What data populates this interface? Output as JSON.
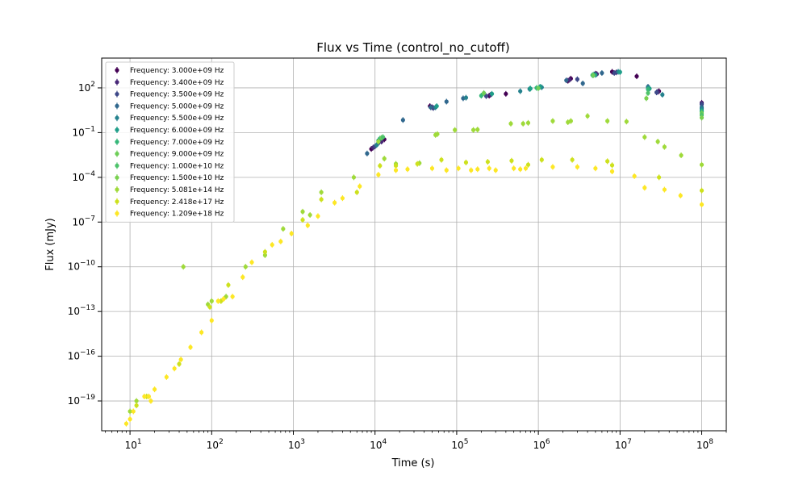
{
  "chart_data": {
    "type": "scatter",
    "title": "Flux vs Time (control_no_cutoff)",
    "xlabel": "Time (s)",
    "ylabel": "Flux (mJy)",
    "xscale": "log",
    "yscale": "log",
    "xlim": [
      4.5,
      200000000
    ],
    "ylim": [
      1e-21,
      10000.0
    ],
    "x_major_ticks": [
      10,
      100,
      1000,
      10000,
      100000,
      1000000,
      10000000,
      100000000
    ],
    "x_tick_labels": [
      {
        "base": "10",
        "exp": "1"
      },
      {
        "base": "10",
        "exp": "2"
      },
      {
        "base": "10",
        "exp": "3"
      },
      {
        "base": "10",
        "exp": "4"
      },
      {
        "base": "10",
        "exp": "5"
      },
      {
        "base": "10",
        "exp": "6"
      },
      {
        "base": "10",
        "exp": "7"
      },
      {
        "base": "10",
        "exp": "8"
      }
    ],
    "y_major_ticks": [
      1e-19,
      1e-16,
      1e-13,
      1e-10,
      1e-07,
      0.0001,
      0.1,
      100
    ],
    "y_tick_labels": [
      {
        "base": "10",
        "exp": "−19"
      },
      {
        "base": "10",
        "exp": "−16"
      },
      {
        "base": "10",
        "exp": "−13"
      },
      {
        "base": "10",
        "exp": "−10"
      },
      {
        "base": "10",
        "exp": "−7"
      },
      {
        "base": "10",
        "exp": "−4"
      },
      {
        "base": "10",
        "exp": "−1"
      },
      {
        "base": "10",
        "exp": "2"
      }
    ],
    "grid": true,
    "legend_position": "top-left",
    "series": [
      {
        "name": "Frequency: 3.000e+09 Hz",
        "color": "#440154",
        "points": [
          [
            9000,
            0.008
          ],
          [
            13000,
            0.035
          ],
          [
            47000,
            6
          ],
          [
            250000,
            30
          ],
          [
            400000,
            40
          ],
          [
            2300000,
            300
          ],
          [
            2500000,
            420
          ],
          [
            5000000,
            900
          ],
          [
            8000000,
            1200
          ],
          [
            16000000,
            600
          ],
          [
            30000000,
            60
          ],
          [
            100000000,
            10
          ]
        ]
      },
      {
        "name": "Frequency: 3.400e+09 Hz",
        "color": "#482878",
        "points": [
          [
            9500,
            0.01
          ],
          [
            12000,
            0.025
          ],
          [
            50000,
            5
          ],
          [
            260000,
            35
          ],
          [
            2400000,
            350
          ],
          [
            5200000,
            850
          ],
          [
            9000000,
            1100
          ],
          [
            29000000,
            55
          ],
          [
            100000000,
            9
          ]
        ]
      },
      {
        "name": "Frequency: 3.500e+09 Hz",
        "color": "#3e4989",
        "points": [
          [
            10000,
            0.012
          ],
          [
            11000,
            0.02
          ],
          [
            52000,
            4.5
          ],
          [
            230000,
            28
          ],
          [
            3000000,
            380
          ],
          [
            8500000,
            1000
          ],
          [
            28000000,
            50
          ],
          [
            100000000,
            8
          ]
        ]
      },
      {
        "name": "Frequency: 5.000e+09 Hz",
        "color": "#31688e",
        "points": [
          [
            8000,
            0.004
          ],
          [
            22000,
            0.7
          ],
          [
            48000,
            5
          ],
          [
            75000,
            12
          ],
          [
            120000,
            20
          ],
          [
            2200000,
            320
          ],
          [
            3500000,
            200
          ],
          [
            6000000,
            1000
          ],
          [
            22000000,
            120
          ],
          [
            100000000,
            5
          ]
        ]
      },
      {
        "name": "Frequency: 5.500e+09 Hz",
        "color": "#26828e",
        "points": [
          [
            10500,
            0.015
          ],
          [
            55000,
            5
          ],
          [
            130000,
            22
          ],
          [
            600000,
            60
          ],
          [
            780000,
            85
          ],
          [
            1100000,
            110
          ],
          [
            4800000,
            800
          ],
          [
            9500000,
            1200
          ],
          [
            22000000,
            100
          ],
          [
            33000000,
            35
          ],
          [
            100000000,
            4
          ]
        ]
      },
      {
        "name": "Frequency: 6.000e+09 Hz",
        "color": "#1f9e89",
        "points": [
          [
            11000,
            0.03
          ],
          [
            57000,
            6
          ],
          [
            270000,
            40
          ],
          [
            800000,
            90
          ],
          [
            1050000,
            120
          ],
          [
            5000000,
            750
          ],
          [
            10000000,
            1150
          ],
          [
            23000000,
            90
          ],
          [
            100000000,
            3
          ]
        ]
      },
      {
        "name": "Frequency: 7.000e+09 Hz",
        "color": "#35b779",
        "points": [
          [
            11500,
            0.04
          ],
          [
            200000,
            30
          ],
          [
            950000,
            100
          ],
          [
            4600000,
            720
          ],
          [
            22000000,
            80
          ],
          [
            100000000,
            2.5
          ]
        ]
      },
      {
        "name": "Frequency: 9.000e+09 Hz",
        "color": "#6ece58",
        "points": [
          [
            12000,
            0.045
          ],
          [
            215000,
            45
          ],
          [
            1000000,
            95
          ],
          [
            4700000,
            700
          ],
          [
            100000000,
            2
          ]
        ]
      },
      {
        "name": "Frequency: 1.000e+10 Hz",
        "color": "#4ec36b",
        "points": [
          [
            12500,
            0.05
          ],
          [
            22000000,
            45
          ],
          [
            100000000,
            1.5
          ]
        ]
      },
      {
        "name": "Frequency: 1.500e+10 Hz",
        "color": "#7ad151",
        "points": [
          [
            21000000,
            20
          ],
          [
            100000000,
            1
          ]
        ]
      },
      {
        "name": "Frequency: 5.081e+14 Hz",
        "color": "#9fda3a",
        "points": [
          [
            5500,
            0.0001
          ],
          [
            11000,
            0.025
          ],
          [
            13000,
            0.0018
          ],
          [
            18000,
            0.0008
          ],
          [
            35000,
            0.0009
          ],
          [
            55000,
            0.07
          ],
          [
            58000,
            0.08
          ],
          [
            95000,
            0.15
          ],
          [
            160000,
            0.15
          ],
          [
            180000,
            0.16
          ],
          [
            460000,
            0.4
          ],
          [
            650000,
            0.4
          ],
          [
            750000,
            0.45
          ],
          [
            1500000,
            0.6
          ],
          [
            2300000,
            0.5
          ],
          [
            2500000,
            0.6
          ],
          [
            4000000,
            1.3
          ],
          [
            7000000,
            0.6
          ],
          [
            12000000,
            0.55
          ],
          [
            20000000,
            0.05
          ],
          [
            29000000,
            0.025
          ],
          [
            35000000,
            0.011
          ],
          [
            56000000,
            0.003
          ],
          [
            100000000,
            0.0007
          ],
          [
            45,
            1e-10
          ],
          [
            90,
            3e-13
          ],
          [
            100,
            5e-13
          ],
          [
            150,
            1e-12
          ],
          [
            260,
            1e-10
          ],
          [
            450,
            6e-10
          ],
          [
            750,
            3.5e-08
          ],
          [
            1300,
            5e-07
          ],
          [
            1600,
            3e-07
          ],
          [
            2200,
            1e-05
          ],
          [
            10,
            2e-20
          ],
          [
            12,
            1e-19
          ]
        ]
      },
      {
        "name": "Frequency: 2.418e+17 Hz",
        "color": "#cde11d",
        "points": [
          [
            6000,
            1e-05
          ],
          [
            11500,
            0.0006
          ],
          [
            18000,
            0.0006
          ],
          [
            33000,
            0.0008
          ],
          [
            65000,
            0.0015
          ],
          [
            130000,
            0.001
          ],
          [
            240000,
            0.0011
          ],
          [
            470000,
            0.0013
          ],
          [
            750000,
            0.0007
          ],
          [
            1100000,
            0.0015
          ],
          [
            2600000,
            0.0015
          ],
          [
            7000000,
            0.0012
          ],
          [
            8000000,
            0.00065
          ],
          [
            30000000,
            0.0001
          ],
          [
            100000000,
            1.3e-05
          ],
          [
            12,
            5e-20
          ],
          [
            16,
            2e-19
          ],
          [
            40,
            3e-17
          ],
          [
            95,
            2e-13
          ],
          [
            130,
            5e-13
          ],
          [
            160,
            6e-12
          ],
          [
            450,
            1e-09
          ],
          [
            1300,
            1.4e-07
          ],
          [
            2200,
            3.3e-06
          ]
        ]
      },
      {
        "name": "Frequency: 1.209e+18 Hz",
        "color": "#fde725",
        "points": [
          [
            9,
            3e-21
          ],
          [
            10,
            6e-21
          ],
          [
            11,
            2e-20
          ],
          [
            15,
            2e-19
          ],
          [
            17,
            2e-19
          ],
          [
            18,
            1e-19
          ],
          [
            20,
            6e-19
          ],
          [
            28,
            4e-18
          ],
          [
            35,
            1.5e-17
          ],
          [
            42,
            6e-17
          ],
          [
            55,
            4e-16
          ],
          [
            75,
            4e-15
          ],
          [
            100,
            2.5e-14
          ],
          [
            120,
            5e-13
          ],
          [
            140,
            7e-13
          ],
          [
            180,
            1e-12
          ],
          [
            240,
            2e-11
          ],
          [
            310,
            2e-10
          ],
          [
            550,
            3e-09
          ],
          [
            700,
            5e-09
          ],
          [
            950,
            1.7e-08
          ],
          [
            1500,
            6e-08
          ],
          [
            2000,
            2.5e-07
          ],
          [
            3200,
            2e-06
          ],
          [
            4000,
            4e-06
          ],
          [
            6500,
            2.5e-05
          ],
          [
            11000,
            0.00015
          ],
          [
            18000,
            0.0003
          ],
          [
            25000,
            0.00035
          ],
          [
            50000,
            0.0004
          ],
          [
            75000,
            0.0003
          ],
          [
            105000,
            0.0004
          ],
          [
            150000,
            0.0003
          ],
          [
            180000,
            0.00035
          ],
          [
            250000,
            0.0004
          ],
          [
            300000,
            0.0003
          ],
          [
            500000,
            0.0004
          ],
          [
            600000,
            0.00035
          ],
          [
            700000,
            0.0004
          ],
          [
            1500000,
            0.0005
          ],
          [
            3000000,
            0.0005
          ],
          [
            5000000,
            0.0004
          ],
          [
            8000000,
            0.00025
          ],
          [
            15000000,
            0.00012
          ],
          [
            20000000,
            2e-05
          ],
          [
            35000000,
            1.5e-05
          ],
          [
            55000000,
            6e-06
          ],
          [
            100000000,
            1.5e-06
          ]
        ]
      }
    ]
  }
}
